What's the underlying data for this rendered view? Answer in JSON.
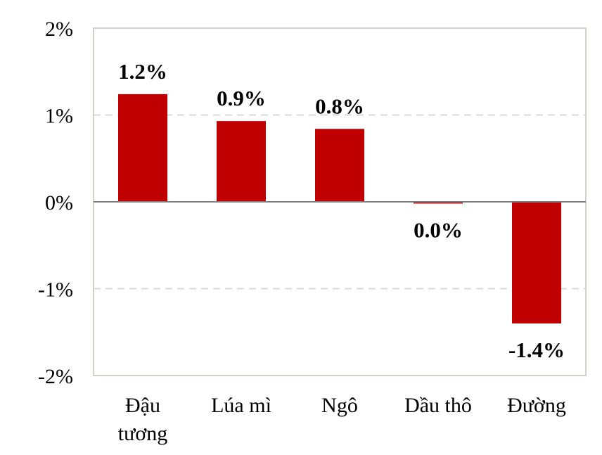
{
  "chart_data": {
    "type": "bar",
    "categories": [
      [
        "Đậu",
        "tương"
      ],
      [
        "Lúa mì"
      ],
      [
        "Ngô"
      ],
      [
        "Dầu thô"
      ],
      [
        "Đường"
      ]
    ],
    "values": [
      1.24,
      0.93,
      0.84,
      -0.02,
      -1.4
    ],
    "data_labels": [
      "1.2%",
      "0.9%",
      "0.8%",
      "0.0%",
      "-1.4%"
    ],
    "ylim": [
      -2,
      2
    ],
    "yticks": [
      2,
      1,
      0,
      -1,
      -2
    ],
    "ytick_labels": [
      "2%",
      "1%",
      "0%",
      "-1%",
      "-2%"
    ],
    "bar_color": "#c00000",
    "gridline_color": "#d9d9d9",
    "border_color": "#c8bfb3",
    "zero_line_color": "#808080",
    "grid": true,
    "title": "",
    "xlabel": "",
    "ylabel": ""
  }
}
